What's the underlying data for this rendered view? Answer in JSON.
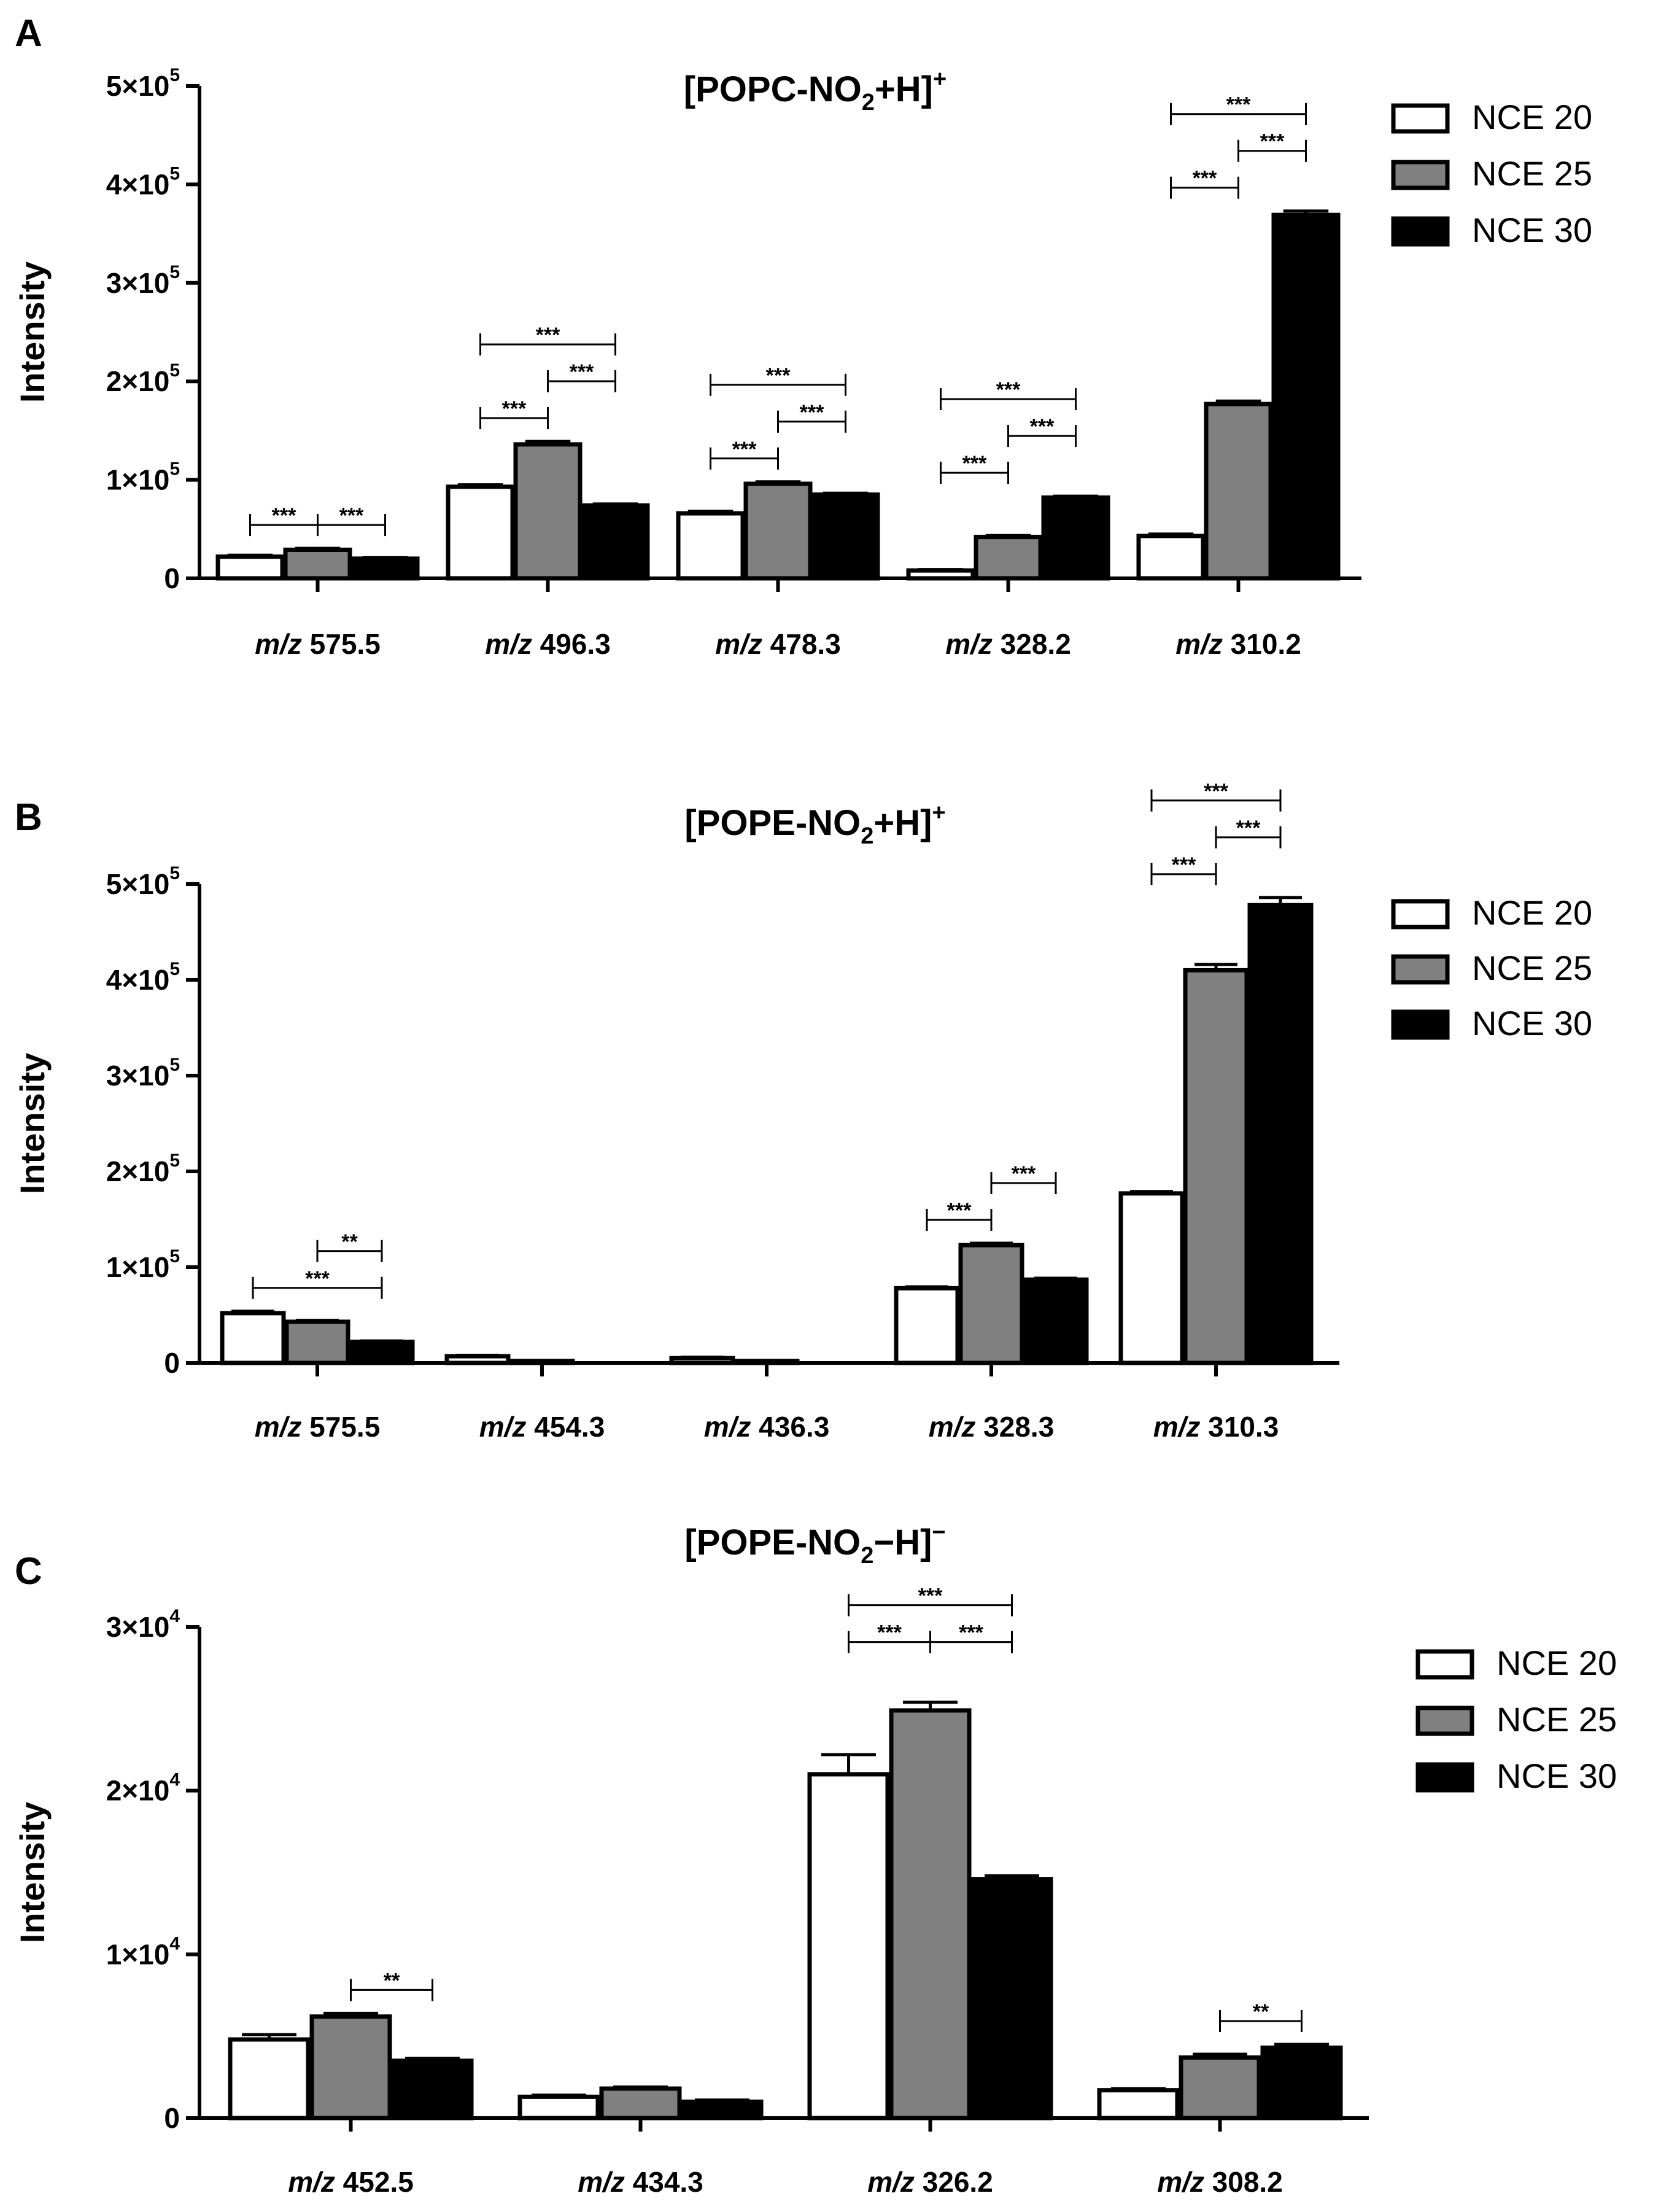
{
  "colors": {
    "nce20": "#ffffff",
    "nce25": "#808080",
    "nce30": "#000000",
    "stroke": "#000000"
  },
  "legend_labels": [
    "NCE 20",
    "NCE 25",
    "NCE 30"
  ],
  "chart_data": [
    {
      "type": "bar",
      "panel_label": "A",
      "title": {
        "main": "[POPC-NO",
        "sub": "2",
        "tail": "+H]",
        "sup": "+"
      },
      "ylabel": "Intensity",
      "ylim": [
        0,
        500000
      ],
      "yticks": [
        {
          "value": 0,
          "label": "0",
          "base": "",
          "exp": ""
        },
        {
          "value": 100000,
          "label": "",
          "base": "1×10",
          "exp": "5"
        },
        {
          "value": 200000,
          "label": "",
          "base": "2×10",
          "exp": "5"
        },
        {
          "value": 300000,
          "label": "",
          "base": "3×10",
          "exp": "5"
        },
        {
          "value": 400000,
          "label": "",
          "base": "4×10",
          "exp": "5"
        },
        {
          "value": 500000,
          "label": "",
          "base": "5×10",
          "exp": "5"
        }
      ],
      "xlabel_prefix": "m/z",
      "categories": [
        "575.5",
        "496.3",
        "478.3",
        "328.2",
        "310.2"
      ],
      "series": [
        {
          "name": "NCE 20",
          "values": [
            22000,
            93000,
            66000,
            8000,
            43000
          ],
          "errors": [
            1500,
            2000,
            2000,
            1000,
            2000
          ]
        },
        {
          "name": "NCE 25",
          "values": [
            29000,
            136000,
            96000,
            42000,
            177000
          ],
          "errors": [
            1500,
            3000,
            2000,
            1500,
            3000
          ]
        },
        {
          "name": "NCE 30",
          "values": [
            20000,
            74000,
            85000,
            82000,
            369000
          ],
          "errors": [
            1000,
            1500,
            1500,
            1500,
            4000
          ]
        }
      ],
      "significance": [
        {
          "cat": 0,
          "from": 0,
          "to": 1,
          "level": 1,
          "label": "***"
        },
        {
          "cat": 0,
          "from": 1,
          "to": 2,
          "level": 1,
          "label": "***"
        },
        {
          "cat": 1,
          "from": 0,
          "to": 1,
          "level": 1,
          "label": "***"
        },
        {
          "cat": 1,
          "from": 1,
          "to": 2,
          "level": 2,
          "label": "***"
        },
        {
          "cat": 1,
          "from": 0,
          "to": 2,
          "level": 3,
          "label": "***"
        },
        {
          "cat": 2,
          "from": 0,
          "to": 1,
          "level": 1,
          "label": "***"
        },
        {
          "cat": 2,
          "from": 1,
          "to": 2,
          "level": 2,
          "label": "***"
        },
        {
          "cat": 2,
          "from": 0,
          "to": 2,
          "level": 3,
          "label": "***"
        },
        {
          "cat": 3,
          "from": 0,
          "to": 1,
          "level": 1,
          "label": "***"
        },
        {
          "cat": 3,
          "from": 1,
          "to": 2,
          "level": 2,
          "label": "***"
        },
        {
          "cat": 3,
          "from": 0,
          "to": 2,
          "level": 3,
          "label": "***"
        },
        {
          "cat": 4,
          "from": 0,
          "to": 1,
          "level": 1,
          "label": "***"
        },
        {
          "cat": 4,
          "from": 1,
          "to": 2,
          "level": 2,
          "label": "***"
        },
        {
          "cat": 4,
          "from": 0,
          "to": 2,
          "level": 3,
          "label": "***"
        }
      ]
    },
    {
      "type": "bar",
      "panel_label": "B",
      "title": {
        "main": "[POPE-NO",
        "sub": "2",
        "tail": "+H]",
        "sup": "+"
      },
      "ylabel": "Intensity",
      "ylim": [
        0,
        500000
      ],
      "yticks": [
        {
          "value": 0,
          "label": "0",
          "base": "",
          "exp": ""
        },
        {
          "value": 100000,
          "label": "",
          "base": "1×10",
          "exp": "5"
        },
        {
          "value": 200000,
          "label": "",
          "base": "2×10",
          "exp": "5"
        },
        {
          "value": 300000,
          "label": "",
          "base": "3×10",
          "exp": "5"
        },
        {
          "value": 400000,
          "label": "",
          "base": "4×10",
          "exp": "5"
        },
        {
          "value": 500000,
          "label": "",
          "base": "5×10",
          "exp": "5"
        }
      ],
      "xlabel_prefix": "m/z",
      "categories": [
        "575.5",
        "454.3",
        "436.3",
        "328.3",
        "310.3"
      ],
      "series": [
        {
          "name": "NCE 20",
          "values": [
            52000,
            7000,
            5000,
            78000,
            177000
          ],
          "errors": [
            2000,
            1000,
            1000,
            1500,
            2000
          ]
        },
        {
          "name": "NCE 25",
          "values": [
            43000,
            2000,
            2000,
            123000,
            410000
          ],
          "errors": [
            1500,
            500,
            500,
            2000,
            6000
          ]
        },
        {
          "name": "NCE 30",
          "values": [
            22000,
            0,
            0,
            87000,
            478000
          ],
          "errors": [
            1000,
            0,
            0,
            1500,
            8000
          ]
        }
      ],
      "significance": [
        {
          "cat": 0,
          "from": 1,
          "to": 2,
          "level": 2,
          "label": "**"
        },
        {
          "cat": 0,
          "from": 0,
          "to": 2,
          "level": 1,
          "label": "***"
        },
        {
          "cat": 3,
          "from": 0,
          "to": 1,
          "level": 1,
          "label": "***"
        },
        {
          "cat": 3,
          "from": 1,
          "to": 2,
          "level": 2,
          "label": "***"
        },
        {
          "cat": 4,
          "from": 0,
          "to": 1,
          "level": 1,
          "label": "***"
        },
        {
          "cat": 4,
          "from": 1,
          "to": 2,
          "level": 2,
          "label": "***"
        },
        {
          "cat": 4,
          "from": 0,
          "to": 2,
          "level": 3,
          "label": "***"
        }
      ]
    },
    {
      "type": "bar",
      "panel_label": "C",
      "title": {
        "main": "[POPE-NO",
        "sub": "2",
        "tail": "−H]",
        "sup": "−"
      },
      "ylabel": "Intensity",
      "ylim": [
        0,
        30000
      ],
      "yticks": [
        {
          "value": 0,
          "label": "0",
          "base": "",
          "exp": ""
        },
        {
          "value": 10000,
          "label": "",
          "base": "1×10",
          "exp": "4"
        },
        {
          "value": 20000,
          "label": "",
          "base": "2×10",
          "exp": "4"
        },
        {
          "value": 30000,
          "label": "",
          "base": "3×10",
          "exp": "4"
        }
      ],
      "xlabel_prefix": "m/z",
      "categories": [
        "452.5",
        "434.3",
        "326.2",
        "308.2"
      ],
      "series": [
        {
          "name": "NCE 20",
          "values": [
            4800,
            1300,
            21000,
            1700
          ],
          "errors": [
            300,
            100,
            1200,
            100
          ]
        },
        {
          "name": "NCE 25",
          "values": [
            6200,
            1800,
            24900,
            3700
          ],
          "errors": [
            200,
            100,
            500,
            200
          ]
        },
        {
          "name": "NCE 30",
          "values": [
            3500,
            1000,
            14600,
            4300
          ],
          "errors": [
            150,
            100,
            200,
            200
          ]
        }
      ],
      "significance": [
        {
          "cat": 0,
          "from": 1,
          "to": 2,
          "level": 1,
          "label": "**"
        },
        {
          "cat": 2,
          "from": 0,
          "to": 1,
          "level": 2,
          "label": "***"
        },
        {
          "cat": 2,
          "from": 1,
          "to": 2,
          "level": 2,
          "label": "***"
        },
        {
          "cat": 2,
          "from": 0,
          "to": 2,
          "level": 3,
          "label": "***"
        },
        {
          "cat": 3,
          "from": 1,
          "to": 2,
          "level": 1,
          "label": "**"
        }
      ]
    }
  ]
}
